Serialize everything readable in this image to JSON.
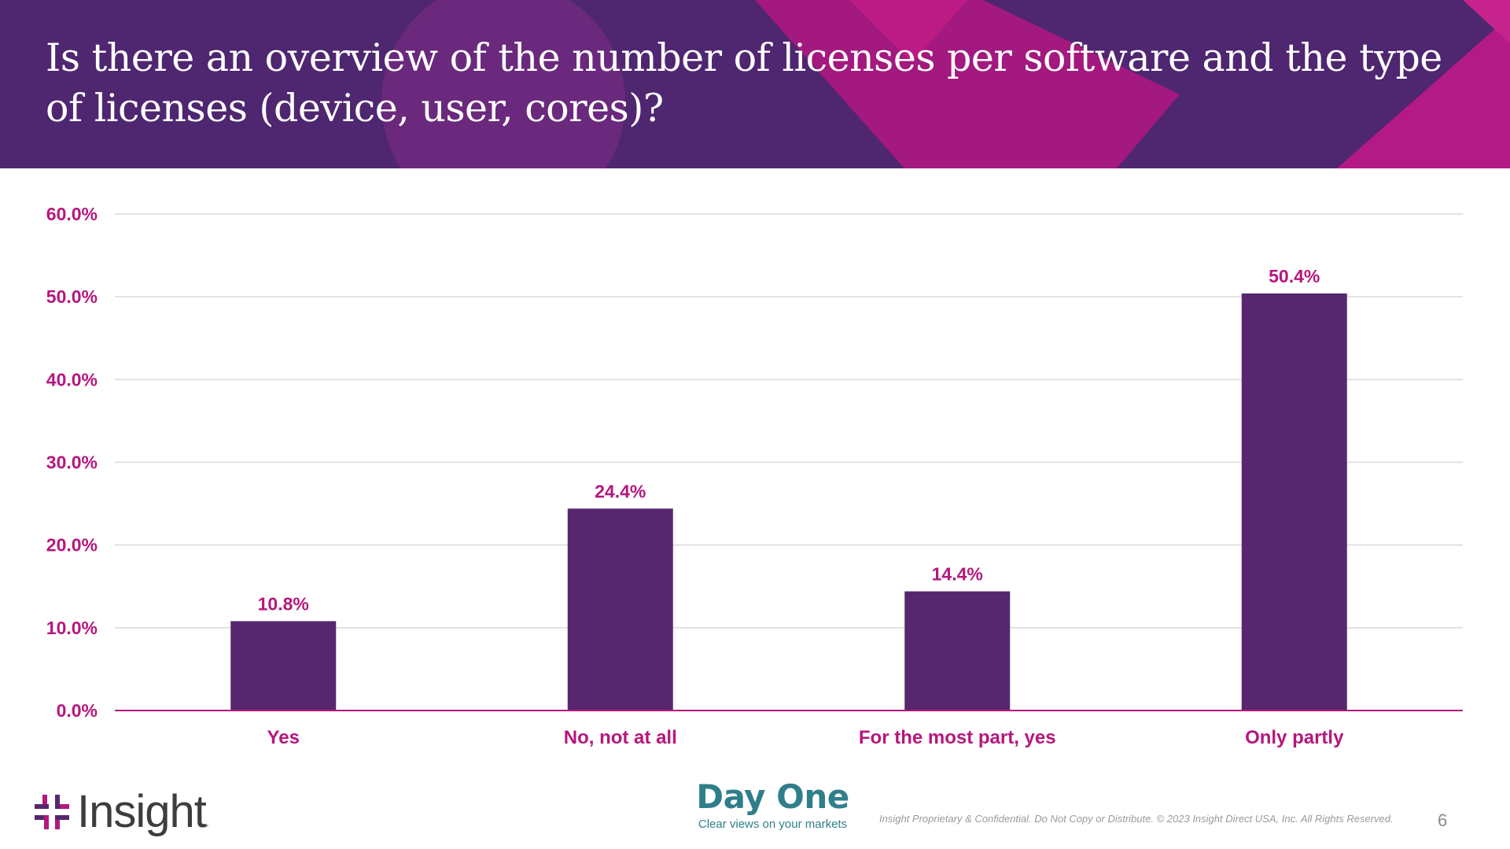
{
  "slide": {
    "title": "Is there an overview of the number of licenses per software and the type of licenses (device, user, cores)?",
    "page_number": "6"
  },
  "colors": {
    "banner": "#4f2670",
    "accent_magenta": "#b5177d",
    "bar": "#56276e",
    "gridline": "#d9d9d9",
    "teal": "#2f7f8a"
  },
  "chart_data": {
    "type": "bar",
    "title": "Is there an overview of the number of licenses per software and the type of licenses (device, user, cores)?",
    "categories": [
      "Yes",
      "No, not at all",
      "For the most part, yes",
      "Only partly"
    ],
    "values": [
      10.8,
      24.4,
      14.4,
      50.4
    ],
    "data_labels": [
      "10.8%",
      "24.4%",
      "14.4%",
      "50.4%"
    ],
    "ylim": [
      0,
      60
    ],
    "yticks": [
      0,
      10,
      20,
      30,
      40,
      50,
      60
    ],
    "ytick_labels": [
      "0.0%",
      "10.0%",
      "20.0%",
      "30.0%",
      "40.0%",
      "50.0%",
      "60.0%"
    ],
    "grid": true,
    "xlabel": "",
    "ylabel": ""
  },
  "footer": {
    "logo_text": "Insight",
    "logo_icon": "insight-logo-icon",
    "brand_title": "Day One",
    "brand_tagline": "Clear views on your markets",
    "confidential": "Insight Proprietary & Confidential. Do Not Copy or Distribute. © 2023 Insight Direct USA, Inc. All Rights Reserved."
  }
}
